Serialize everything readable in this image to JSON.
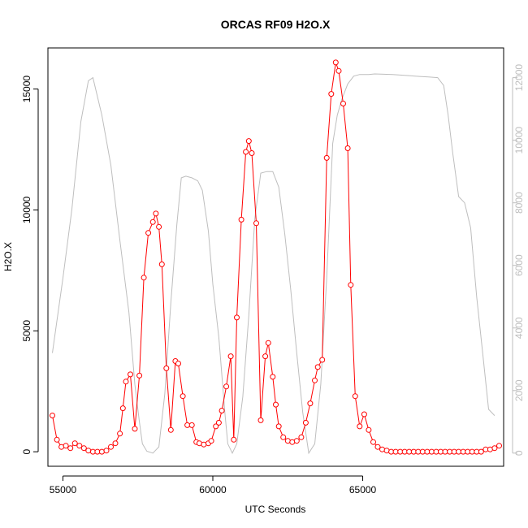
{
  "chart_data": {
    "type": "line",
    "title": "ORCAS RF09 H2O.X",
    "xlabel": "UTC Seconds",
    "ylabel": "H2O.X",
    "xlim": [
      54500,
      69700
    ],
    "ylim": [
      -600,
      16700
    ],
    "y2lim": [
      -420,
      12950
    ],
    "x_ticks": [
      55000,
      60000,
      65000
    ],
    "y_ticks": [
      0,
      5000,
      10000,
      15000
    ],
    "y2_ticks": [
      0,
      2000,
      4000,
      6000,
      8000,
      10000,
      12000
    ],
    "colors": {
      "primary": "#ff0000",
      "secondary": "#bebebe",
      "axis": "#000000"
    },
    "series": [
      {
        "axis": "left",
        "style": "line+points",
        "color": "#ff0000",
        "x": [
          54650,
          54800,
          54950,
          55100,
          55250,
          55400,
          55550,
          55700,
          55850,
          56000,
          56150,
          56300,
          56450,
          56600,
          56750,
          56900,
          57000,
          57100,
          57250,
          57400,
          57550,
          57700,
          57850,
          58000,
          58100,
          58200,
          58300,
          58450,
          58600,
          58750,
          58850,
          59000,
          59150,
          59300,
          59450,
          59550,
          59700,
          59850,
          59950,
          60100,
          60200,
          60300,
          60450,
          60600,
          60700,
          60800,
          60950,
          61100,
          61200,
          61300,
          61450,
          61600,
          61750,
          61850,
          62000,
          62100,
          62200,
          62350,
          62500,
          62650,
          62800,
          62950,
          63100,
          63250,
          63400,
          63500,
          63650,
          63800,
          63950,
          64100,
          64200,
          64350,
          64500,
          64600,
          64750,
          64900
        ],
        "y": [
          1500,
          500,
          200,
          250,
          150,
          350,
          250,
          150,
          50,
          0,
          0,
          0,
          50,
          200,
          350,
          750,
          1800,
          2900,
          3200,
          950,
          3150,
          7200,
          9050,
          9500,
          9850,
          9300,
          7750,
          3450,
          900,
          3750,
          3650,
          2300,
          1100,
          1100,
          400,
          350,
          300,
          350,
          450,
          1050,
          1200,
          1700,
          2700,
          3950,
          500,
          5550,
          9600,
          12400,
          12850,
          12350,
          9450,
          1300,
          3950,
          4500,
          3100,
          1950,
          1050,
          600,
          450,
          400,
          450,
          600,
          1200,
          2000,
          2950,
          3500,
          3800,
          12150,
          14800,
          16100,
          15750,
          14400,
          12550,
          6900,
          2300,
          1050
        ],
        "x_extra": [
          65050,
          65200,
          65350,
          65500,
          65650,
          65800,
          65950,
          66100,
          66250,
          66400,
          66550,
          66700,
          66850,
          67000,
          67150,
          67300,
          67450,
          67600,
          67750,
          67900,
          68050,
          68200,
          68350,
          68500,
          68650,
          68800,
          68950,
          69100,
          69250,
          69400,
          69550
        ],
        "y_extra": [
          1550,
          900,
          400,
          200,
          100,
          50,
          0,
          0,
          0,
          0,
          0,
          0,
          0,
          0,
          0,
          0,
          0,
          0,
          0,
          0,
          0,
          0,
          0,
          0,
          0,
          0,
          0,
          100,
          100,
          150,
          250
        ]
      },
      {
        "axis": "right",
        "style": "line",
        "color": "#bebebe",
        "x": [
          54650,
          55000,
          55300,
          55600,
          55850,
          56000,
          56300,
          56600,
          56900,
          57200,
          57400,
          57550,
          57650,
          57800,
          58000,
          58200,
          58400,
          58600,
          58800,
          58950,
          59100,
          59300,
          59500,
          59650,
          59850,
          60000,
          60200,
          60400,
          60500,
          60650,
          60800,
          61000,
          61200,
          61400,
          61600,
          61800,
          62000,
          62200,
          62400,
          62600,
          62800,
          63000,
          63200,
          63400,
          63600,
          63800,
          64000,
          64150,
          64300,
          64500,
          64700,
          64900,
          65050,
          65200,
          65400,
          65700,
          66000,
          66300,
          66600,
          66900,
          67200,
          67500,
          67700,
          67850,
          68000,
          68200,
          68400,
          68600,
          68800,
          69000,
          69200,
          69400
        ],
        "y": [
          3200,
          5600,
          7800,
          10600,
          11900,
          12000,
          10800,
          9200,
          6800,
          4500,
          2200,
          1000,
          300,
          60,
          0,
          200,
          1900,
          4800,
          7300,
          8800,
          8850,
          8800,
          8700,
          8400,
          7100,
          5400,
          3700,
          1300,
          300,
          0,
          300,
          1800,
          4400,
          7500,
          8950,
          9000,
          9000,
          8500,
          7000,
          5200,
          3200,
          1300,
          0,
          300,
          2200,
          5600,
          9900,
          10800,
          11300,
          11800,
          12050,
          12100,
          12100,
          12100,
          12120,
          12110,
          12100,
          12080,
          12060,
          12040,
          12020,
          12000,
          11750,
          10800,
          9600,
          8200,
          8000,
          7200,
          5000,
          3200,
          1400,
          1200
        ]
      }
    ]
  }
}
